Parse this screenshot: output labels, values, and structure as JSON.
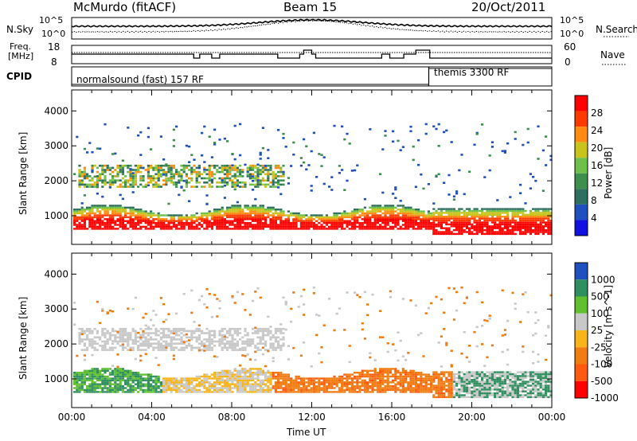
{
  "header": {
    "station": "McMurdo (fitACF)",
    "beam": "Beam 15",
    "date": "20/Oct/2011"
  },
  "sky_panel": {
    "left_label": "N.Sky",
    "right_label": "N.Search",
    "left_ticks": [
      "10^5",
      "10^0"
    ],
    "right_ticks": [
      "10^5",
      "10^0"
    ]
  },
  "freq_panel": {
    "left_label_1": "Freq.",
    "left_label_2": "[MHz]",
    "left_ticks": [
      "18",
      "8"
    ],
    "right_label": "Nave",
    "right_ticks": [
      "60",
      "0"
    ]
  },
  "cpid_panel": {
    "label": "CPID",
    "mode_1": "normalsound (fast) 157 RF",
    "mode_2": "themis 3300 RF"
  },
  "chart_data": [
    {
      "type": "heatmap",
      "title": "",
      "xlabel": "",
      "ylabel": "Slant Range [km]",
      "colorbar_label": "Power [dB]",
      "colorbar_ticks": [
        28,
        24,
        20,
        16,
        12,
        8,
        4
      ],
      "colorbar_range": [
        0,
        32
      ],
      "y_ticks": [
        1000,
        2000,
        3000,
        4000
      ],
      "ylim": [
        180,
        4600
      ],
      "xlim": [
        "00:00",
        "24:00"
      ],
      "bands": [
        {
          "name_desc": "lower scatter band",
          "x_start_h": 0.3,
          "x_end_h": 24,
          "range_km": [
            500,
            1300
          ],
          "level_db": 26
        },
        {
          "name_desc": "upper scatter band",
          "x_start_h": 0.3,
          "x_end_h": 10.6,
          "range_km": [
            1800,
            2500
          ],
          "level_db": 16
        }
      ],
      "grid": false
    },
    {
      "type": "heatmap",
      "title": "",
      "xlabel": "Time UT",
      "ylabel": "Slant Range [km]",
      "colorbar_label": "Velocity [m s^-1]",
      "colorbar_ticks": [
        1000,
        500,
        100,
        25,
        -25,
        -100,
        -500,
        -1000
      ],
      "colorbar_range": [
        -1000,
        1000
      ],
      "y_ticks": [
        1000,
        2000,
        3000,
        4000
      ],
      "ylim": [
        180,
        4600
      ],
      "x_ticks": [
        "00:00",
        "04:00",
        "08:00",
        "12:00",
        "16:00",
        "20:00",
        "00:00"
      ],
      "grid": false
    }
  ],
  "colors": {
    "power_scale": [
      "#1010e0",
      "#2050c0",
      "#2f6f5f",
      "#3c8f4c",
      "#6fc04a",
      "#c8c41c",
      "#ff8c10",
      "#ff3a00",
      "#ff0000"
    ],
    "velocity_scale": [
      "#ff0000",
      "#ff5a10",
      "#f07c12",
      "#f7b51a",
      "#c8c8c8",
      "#60c030",
      "#2f8f5f",
      "#2050c0"
    ]
  }
}
